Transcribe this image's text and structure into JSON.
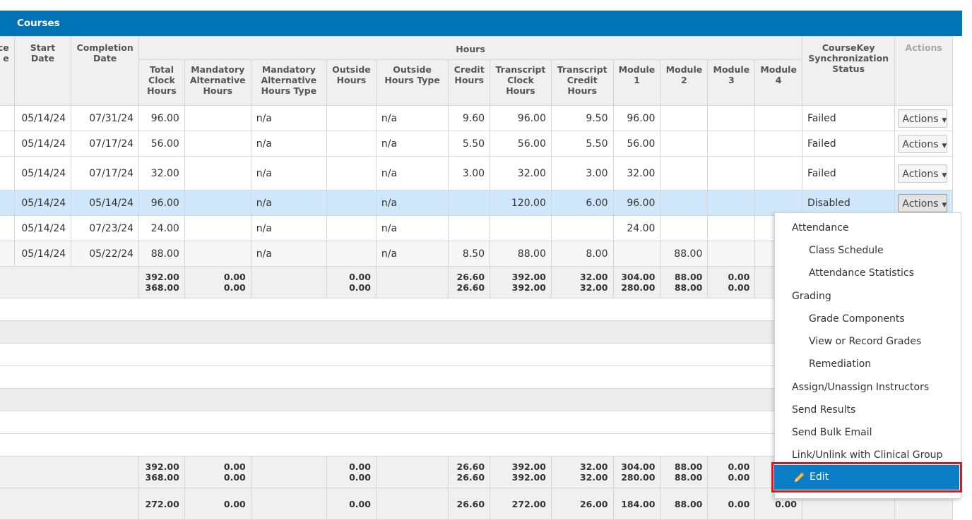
{
  "panel": {
    "title": "Courses"
  },
  "headers": {
    "prev_col_fragment": "ce\ne",
    "start_date": "Start Date",
    "completion_date": "Completion Date",
    "hours_group": "Hours",
    "hours_sub": [
      "Total Clock Hours",
      "Mandatory Alternative Hours",
      "Mandatory Alternative Hours Type",
      "Outside Hours",
      "Outside Hours Type",
      "Credit Hours",
      "Transcript Clock Hours",
      "Transcript Credit Hours",
      "Module 1",
      "Module 2",
      "Module 3",
      "Module 4"
    ],
    "sync_status": "CourseKey Synchronization Status",
    "actions": "Actions"
  },
  "rows": [
    {
      "start": "05/14/24",
      "end": "07/31/24",
      "total": "96.00",
      "mand": "",
      "mand_type": "n/a",
      "outside": "",
      "outside_type": "n/a",
      "credit": "9.60",
      "tclock": "96.00",
      "tcredit": "9.50",
      "m1": "96.00",
      "m2": "",
      "m3": "",
      "m4": "",
      "status": "Failed",
      "action": "Actions"
    },
    {
      "start": "05/14/24",
      "end": "07/17/24",
      "total": "56.00",
      "mand": "",
      "mand_type": "n/a",
      "outside": "",
      "outside_type": "n/a",
      "credit": "5.50",
      "tclock": "56.00",
      "tcredit": "5.50",
      "m1": "56.00",
      "m2": "",
      "m3": "",
      "m4": "",
      "status": "Failed",
      "action": "Actions"
    },
    {
      "start": "05/14/24",
      "end": "07/17/24",
      "total": "32.00",
      "mand": "",
      "mand_type": "n/a",
      "outside": "",
      "outside_type": "n/a",
      "credit": "3.00",
      "tclock": "32.00",
      "tcredit": "3.00",
      "m1": "32.00",
      "m2": "",
      "m3": "",
      "m4": "",
      "status": "Failed",
      "action": "Actions"
    },
    {
      "start": "05/14/24",
      "end": "05/14/24",
      "total": "96.00",
      "mand": "",
      "mand_type": "n/a",
      "outside": "",
      "outside_type": "n/a",
      "credit": "",
      "tclock": "120.00",
      "tcredit": "6.00",
      "m1": "96.00",
      "m2": "",
      "m3": "",
      "m4": "",
      "status": "Disabled",
      "action": "Actions"
    },
    {
      "start": "05/14/24",
      "end": "07/23/24",
      "total": "24.00",
      "mand": "",
      "mand_type": "n/a",
      "outside": "",
      "outside_type": "n/a",
      "credit": "",
      "tclock": "",
      "tcredit": "",
      "m1": "24.00",
      "m2": "",
      "m3": "",
      "m4": "",
      "status": "",
      "action": ""
    },
    {
      "start": "05/14/24",
      "end": "05/22/24",
      "total": "88.00",
      "mand": "",
      "mand_type": "n/a",
      "outside": "",
      "outside_type": "n/a",
      "credit": "8.50",
      "tclock": "88.00",
      "tcredit": "8.00",
      "m1": "",
      "m2": "88.00",
      "m3": "",
      "m4": "",
      "status": "",
      "action": ""
    }
  ],
  "totals": {
    "total": [
      "392.00",
      "368.00"
    ],
    "mand": [
      "0.00",
      "0.00"
    ],
    "outside": [
      "0.00",
      "0.00"
    ],
    "credit": [
      "26.60",
      "26.60"
    ],
    "tclock": [
      "392.00",
      "392.00"
    ],
    "tcredit": [
      "32.00",
      "32.00"
    ],
    "m1": [
      "304.00",
      "280.00"
    ],
    "m2": [
      "88.00",
      "88.00"
    ],
    "m3": [
      "0.00",
      "0.00"
    ]
  },
  "totals2": {
    "total": [
      "392.00",
      "368.00"
    ],
    "mand": [
      "0.00",
      "0.00"
    ],
    "outside": [
      "0.00",
      "0.00"
    ],
    "credit": [
      "26.60",
      "26.60"
    ],
    "tclock": [
      "392.00",
      "392.00"
    ],
    "tcredit": [
      "32.00",
      "32.00"
    ],
    "m1": [
      "304.00",
      "280.00"
    ],
    "m2": [
      "88.00",
      "88.00"
    ],
    "m3": [
      "0.00",
      "0.00"
    ]
  },
  "totals3_partial": {
    "total": "272.00",
    "mand": "0.00",
    "outside": "0.00",
    "credit": "26.60",
    "tclock": "272.00",
    "tcredit": "26.00",
    "m1": "184.00",
    "m2": "88.00",
    "m3": "0.00",
    "m4": "0.00"
  },
  "menu": {
    "items": [
      {
        "label": "Attendance",
        "level": 0
      },
      {
        "label": "Class Schedule",
        "level": 1
      },
      {
        "label": "Attendance Statistics",
        "level": 1
      },
      {
        "label": "Grading",
        "level": 0
      },
      {
        "label": "Grade Components",
        "level": 1
      },
      {
        "label": "View or Record Grades",
        "level": 1
      },
      {
        "label": "Remediation",
        "level": 1
      },
      {
        "label": "Assign/Unassign Instructors",
        "level": 0
      },
      {
        "label": "Send Results",
        "level": 0
      },
      {
        "label": "Send Bulk Email",
        "level": 0
      },
      {
        "label": "Link/Unlink with Clinical Group",
        "level": 0
      }
    ],
    "edit_label": "Edit",
    "edit_icon": "pencil-icon"
  },
  "colors": {
    "header_blue": "#0073b7",
    "selected_row": "#cfe7fb",
    "edit_highlight": "#0a7dc6",
    "annotation_red": "#e0141e"
  }
}
